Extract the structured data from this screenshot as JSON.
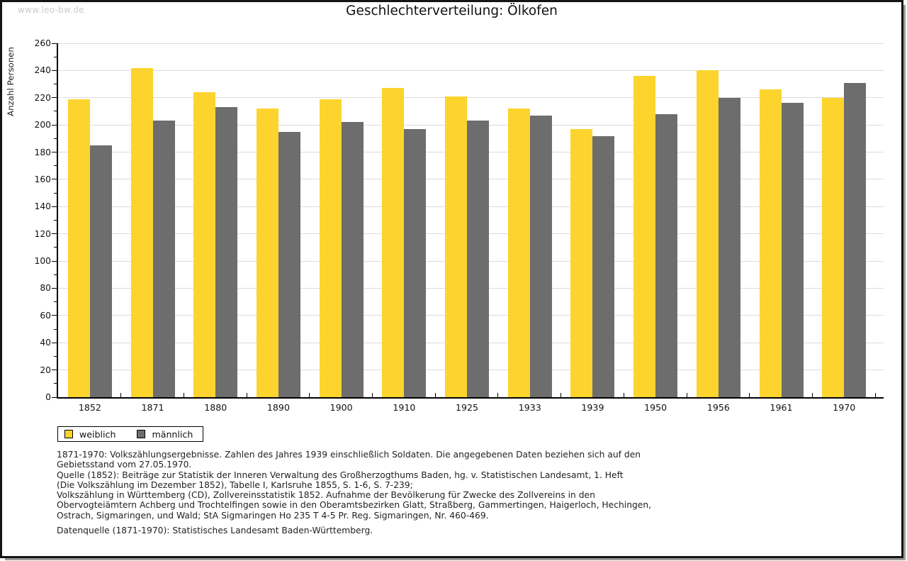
{
  "watermark": "www.leo-bw.de",
  "title": "Geschlechterverteilung: Ölkofen",
  "chart_data": {
    "type": "bar",
    "title": "Geschlechterverteilung: Ölkofen",
    "xlabel": "",
    "ylabel": "Anzahl Personen",
    "ylim": [
      0,
      260
    ],
    "ytick_step": 20,
    "yticks": [
      0,
      20,
      40,
      60,
      80,
      100,
      120,
      140,
      160,
      180,
      200,
      220,
      240,
      260
    ],
    "minor_tick_step": 10,
    "grid": true,
    "legend_position": "bottom-left",
    "categories": [
      "1852",
      "1871",
      "1880",
      "1890",
      "1900",
      "1910",
      "1925",
      "1933",
      "1939",
      "1950",
      "1956",
      "1961",
      "1970"
    ],
    "series": [
      {
        "name": "weiblich",
        "color": "#FCD42D",
        "values": [
          219,
          242,
          224,
          212,
          219,
          227,
          221,
          212,
          197,
          236,
          240,
          226,
          220
        ]
      },
      {
        "name": "männlich",
        "color": "#6D6D6D",
        "values": [
          185,
          203,
          213,
          195,
          202,
          197,
          203,
          207,
          192,
          208,
          220,
          216,
          231
        ]
      }
    ]
  },
  "footnotes": [
    "1871-1970: Volkszählungsergebnisse. Zahlen des Jahres 1939 einschließlich Soldaten. Die angegebenen Daten beziehen sich auf den",
    "Gebietsstand vom 27.05.1970.",
    "Quelle (1852): Beiträge zur Statistik der Inneren Verwaltung des Großherzogthums Baden, hg. v. Statistischen Landesamt, 1. Heft",
    "(Die Volkszählung im Dezember 1852), Tabelle I, Karlsruhe 1855, S. 1-6, S. 7-239;",
    "Volkszählung in Württemberg (CD), Zollvereinsstatistik 1852. Aufnahme der Bevölkerung für Zwecke des Zollvereins in den",
    "Obervogteiämtern Achberg und Trochtelfingen sowie in den Oberamtsbezirken Glatt, Straßberg, Gammertingen, Haigerloch, Hechingen,",
    "Ostrach, Sigmaringen, und Wald; StA Sigmaringen Ho 235 T 4-5 Pr. Reg. Sigmaringen, Nr. 460-469."
  ],
  "datasource": "Datenquelle (1871-1970): Statistisches Landesamt Baden-Württemberg.",
  "colors": {
    "weiblich": "#FCD42D",
    "maennlich": "#6D6D6D",
    "gridline": "#DCDCDC",
    "axis": "#000000",
    "watermark": "#CBCBCB",
    "frame_border": "#141414",
    "frame_shadow": "#9A9A9A"
  }
}
